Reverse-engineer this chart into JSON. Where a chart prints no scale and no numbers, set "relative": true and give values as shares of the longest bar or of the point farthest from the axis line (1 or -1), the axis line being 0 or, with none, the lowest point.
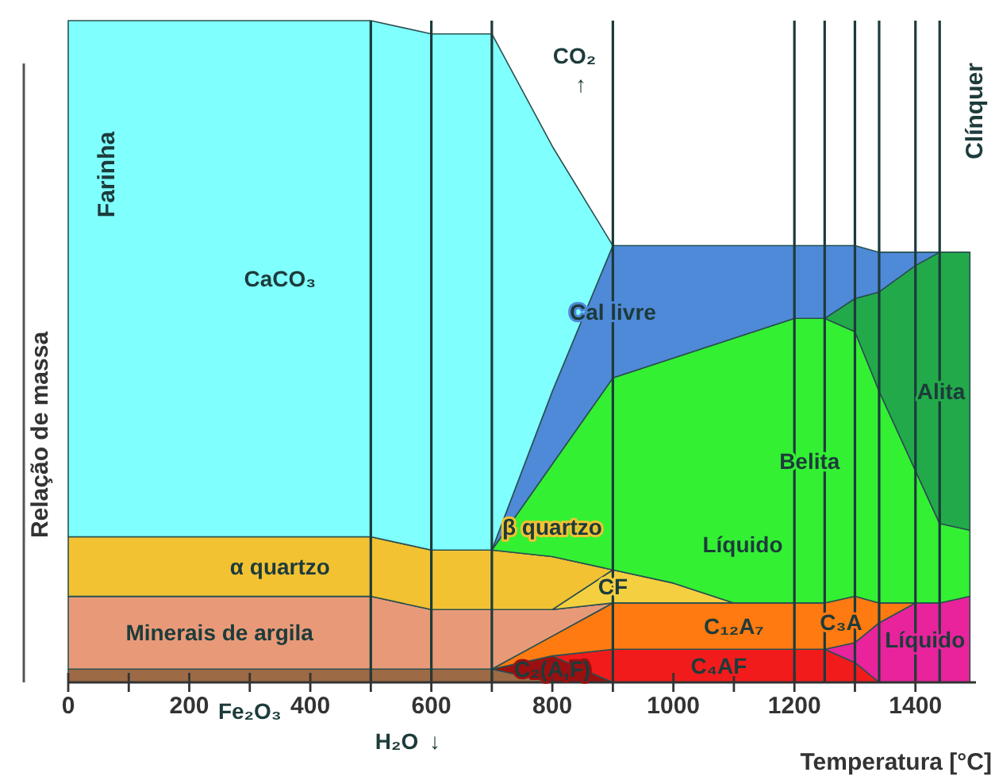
{
  "chart_data": {
    "type": "area",
    "stacked": true,
    "relative": true,
    "xlabel": "Temperatura [°C]",
    "ylabel": "Relação de massa",
    "x": [
      0,
      500,
      600,
      700,
      800,
      900,
      1000,
      1100,
      1200,
      1250,
      1300,
      1340,
      1400,
      1440,
      1490
    ],
    "xlim": [
      0,
      1500
    ],
    "xticks": [
      0,
      {
        "value": 100,
        "label": null
      },
      200,
      {
        "value": 300,
        "label": null
      },
      400,
      {
        "value": 500,
        "label": null
      },
      600,
      {
        "value": 700,
        "label": null
      },
      800,
      {
        "value": 900,
        "label": null
      },
      1000,
      {
        "value": 1100,
        "label": null
      },
      1200,
      {
        "value": 1300,
        "label": null
      },
      1400
    ],
    "series": [
      {
        "name": "Fe₂O₃",
        "color": "#9c6a45",
        "values": [
          0.02,
          0.02,
          0.02,
          0.02,
          0,
          null,
          null,
          null,
          null,
          null,
          null,
          null,
          null,
          null,
          null
        ]
      },
      {
        "name": "C₂(A,F)",
        "color": "#9a1010",
        "values": [
          null,
          null,
          null,
          0,
          0.04,
          0,
          null,
          null,
          null,
          null,
          null,
          null,
          null,
          null,
          null
        ]
      },
      {
        "name": "C₄AF",
        "color": "#f21b1b",
        "values": [
          null,
          null,
          null,
          null,
          0,
          0.05,
          0.05,
          0.05,
          0.05,
          0.05,
          0.03,
          0,
          null,
          null,
          null
        ]
      },
      {
        "name": "Líquido",
        "color": "#e8239c",
        "values": [
          null,
          null,
          null,
          null,
          null,
          null,
          null,
          null,
          null,
          0,
          0.03,
          0.09,
          0.12,
          0.12,
          0.13
        ]
      },
      {
        "name": "C₁₂A₇",
        "color": "#ff7a10",
        "values": [
          null,
          null,
          null,
          0,
          0.03,
          0.07,
          0.07,
          0.07,
          0.07,
          0.07,
          0.07,
          0.03,
          0,
          null,
          null
        ]
      },
      {
        "name": "Minerais de argila",
        "color": "#e89a78",
        "values": [
          0.11,
          0.11,
          0.09,
          0.09,
          0.04,
          0,
          null,
          null,
          null,
          null,
          null,
          null,
          null,
          null,
          null
        ]
      },
      {
        "name": "CF",
        "color": "#f4d040",
        "values": [
          null,
          null,
          null,
          null,
          0,
          0.05,
          0.03,
          0,
          null,
          null,
          null,
          null,
          null,
          null,
          null
        ]
      },
      {
        "name": "α quartzo",
        "color": "#f2c232",
        "values": [
          0.09,
          0.09,
          0.09,
          0.09,
          0.08,
          0,
          null,
          null,
          null,
          null,
          null,
          null,
          null,
          null,
          null
        ]
      },
      {
        "name": "Belita",
        "color": "#33f033",
        "values": [
          null,
          null,
          null,
          0,
          0.14,
          0.29,
          0.34,
          0.4,
          0.43,
          0.43,
          0.4,
          0.32,
          0.2,
          0.12,
          0.1
        ]
      },
      {
        "name": "Alita",
        "color": "#22aa4a",
        "values": [
          null,
          null,
          null,
          null,
          null,
          null,
          null,
          null,
          null,
          0,
          0.05,
          0.15,
          0.31,
          0.41,
          0.42
        ]
      },
      {
        "name": "Cal livre",
        "color": "#4f8ad8",
        "values": [
          null,
          null,
          null,
          0,
          0.11,
          0.2,
          0.17,
          0.14,
          0.11,
          0.11,
          0.08,
          0.06,
          0.02,
          0,
          null
        ]
      },
      {
        "name": "CaCO₃",
        "color": "#80ffff",
        "values": [
          0.78,
          0.78,
          0.78,
          0.78,
          0.37,
          0,
          null,
          null,
          null,
          null,
          null,
          null,
          null,
          null,
          null
        ]
      }
    ],
    "ref_lines": [
      {
        "axis": "x",
        "value": 500,
        "color": "#1d3b3b"
      },
      {
        "axis": "x",
        "value": 600,
        "color": "#1d3b3b"
      },
      {
        "axis": "x",
        "value": 700,
        "color": "#1d3b3b"
      },
      {
        "axis": "x",
        "value": 900,
        "color": "#1d3b3b"
      },
      {
        "axis": "x",
        "value": 1200,
        "color": "#1d3b3b"
      },
      {
        "axis": "x",
        "value": 1250,
        "color": "#1d3b3b"
      },
      {
        "axis": "x",
        "value": 1300,
        "color": "#1d3b3b"
      },
      {
        "axis": "x",
        "value": 1340,
        "color": "#1d3b3b"
      },
      {
        "axis": "x",
        "value": 1400,
        "color": "#1d3b3b"
      },
      {
        "axis": "x",
        "value": 1440,
        "color": "#1d3b3b"
      }
    ],
    "annotations": [
      "Farinha",
      "Clínquer",
      "β quartzo",
      "C₃A",
      "Líquido",
      "CO₂",
      "↑",
      "H₂O",
      "↓"
    ]
  }
}
